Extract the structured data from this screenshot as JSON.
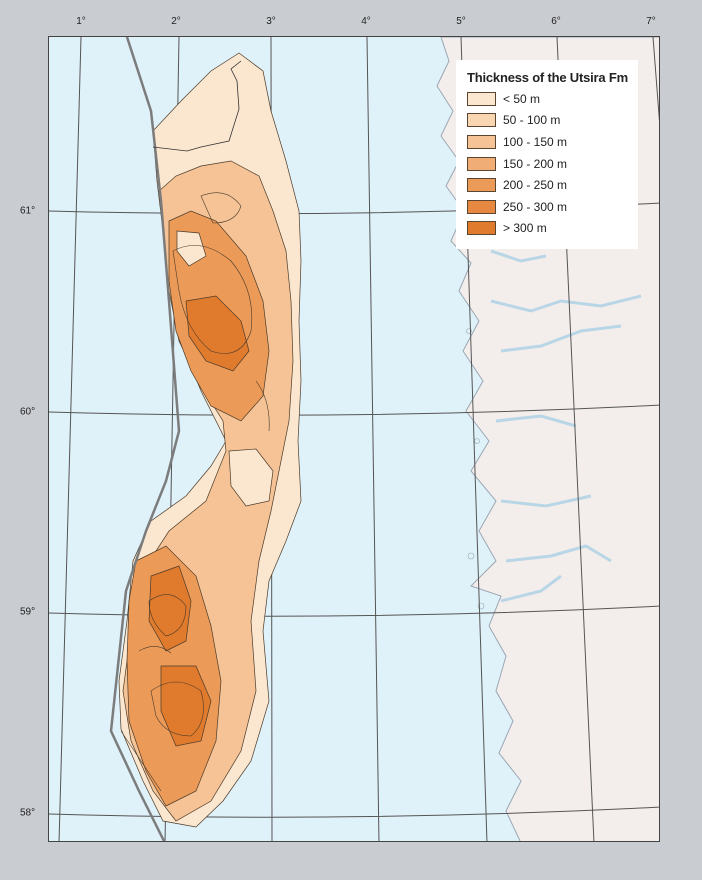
{
  "map": {
    "longitude_labels": [
      "1°",
      "2°",
      "3°",
      "4°",
      "5°",
      "6°",
      "7°"
    ],
    "latitude_labels": [
      "61°",
      "60°",
      "59°",
      "58°"
    ]
  },
  "legend": {
    "title": "Thickness of the Utsira Fm",
    "items": [
      {
        "label": "< 50 m",
        "color": "#fbe6cf"
      },
      {
        "label": "50 - 100 m",
        "color": "#f8d6b1"
      },
      {
        "label": "100 - 150 m",
        "color": "#f5c395"
      },
      {
        "label": "150 - 200 m",
        "color": "#f0ad76"
      },
      {
        "label": "200 - 250 m",
        "color": "#eb9a58"
      },
      {
        "label": "250 - 300 m",
        "color": "#e6883f"
      },
      {
        "label": "> 300 m",
        "color": "#e07a2c"
      }
    ]
  },
  "colors": {
    "sea": "#dff1f9",
    "land": "#f3eeec",
    "coastline": "#9aa7b3",
    "boundary": "#7c7c7c",
    "contour": "#4b3b2a"
  }
}
